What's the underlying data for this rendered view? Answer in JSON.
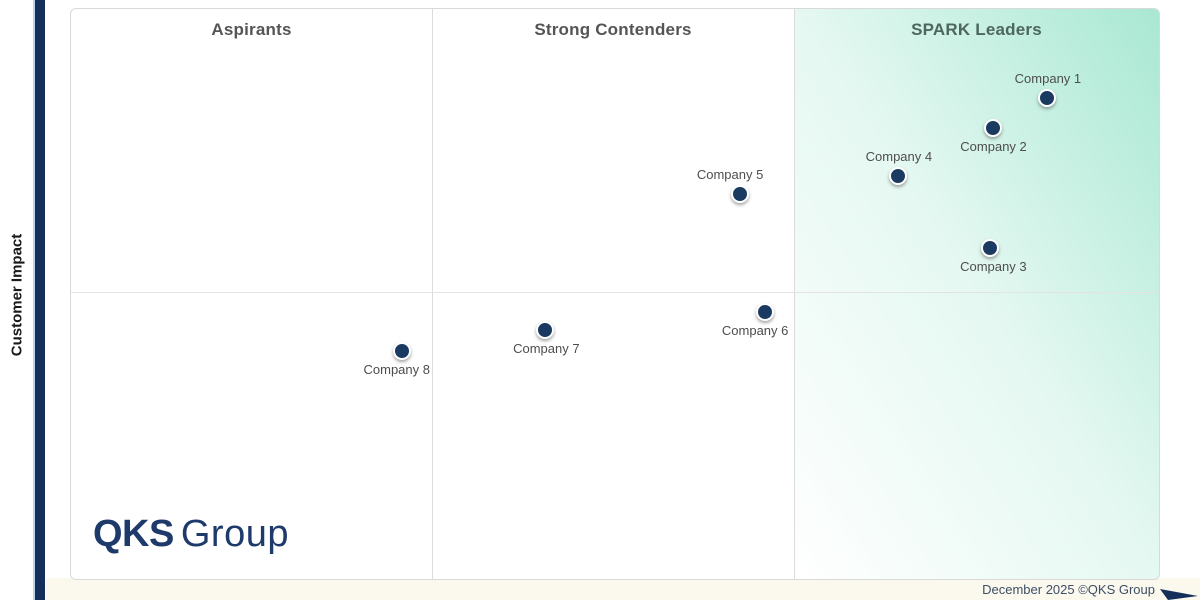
{
  "axes": {
    "y_label": "Customer Impact"
  },
  "footer": {
    "note": "December 2025 ©QKS Group"
  },
  "logo": {
    "bold": "QKS",
    "light": "Group"
  },
  "colors": {
    "navy_bar": "#14305a",
    "bar_edge": "#bcd4ea",
    "dot_fill": "#1b3a61",
    "dot_ring": "#ffffff",
    "label_gray": "#4d4d4d",
    "quadrant_title_gray": "#555555",
    "leaders_title": "#4d675f",
    "leaders_teal": "#a9e8d3",
    "grid": "#dcdcdc",
    "cream_strip": "#fbf8ee",
    "logo_navy": "#1e3a6b",
    "footer_text": "#3d4f66"
  },
  "chart_data": {
    "type": "scatter",
    "title": "",
    "xlabel": "",
    "ylabel": "Customer Impact",
    "legend": "none",
    "grid": "quadrant dividers only (no ticks, no axis labels on scale)",
    "x_range_pct": [
      0,
      100
    ],
    "y_range_pct": [
      0,
      100
    ],
    "quadrants": [
      {
        "label": "Aspirants"
      },
      {
        "label": "Strong Contenders"
      },
      {
        "label": "SPARK Leaders"
      }
    ],
    "points": [
      {
        "name": "Company 1",
        "x_pct": 89.7,
        "y_pct": 84.4,
        "quadrant": "SPARK Leaders",
        "label_position": "above",
        "label_dx": 1
      },
      {
        "name": "Company 2",
        "x_pct": 84.7,
        "y_pct": 79.1,
        "quadrant": "SPARK Leaders",
        "label_position": "below",
        "label_dx": 1
      },
      {
        "name": "Company 3",
        "x_pct": 84.5,
        "y_pct": 58.1,
        "quadrant": "SPARK Leaders",
        "label_position": "below",
        "label_dx": 3
      },
      {
        "name": "Company 4",
        "x_pct": 76.0,
        "y_pct": 70.7,
        "quadrant": "SPARK Leaders",
        "label_position": "above",
        "label_dx": 1
      },
      {
        "name": "Company 5",
        "x_pct": 61.5,
        "y_pct": 67.5,
        "quadrant": "Strong Contenders",
        "label_position": "above",
        "label_dx": -10
      },
      {
        "name": "Company 6",
        "x_pct": 63.8,
        "y_pct": 46.8,
        "quadrant": "Strong Contenders",
        "label_position": "below",
        "label_dx": -10
      },
      {
        "name": "Company 7",
        "x_pct": 43.6,
        "y_pct": 43.7,
        "quadrant": "Strong Contenders",
        "label_position": "below",
        "label_dx": 1
      },
      {
        "name": "Company 8",
        "x_pct": 30.4,
        "y_pct": 40.0,
        "quadrant": "Aspirants",
        "label_position": "below",
        "label_dx": -5
      }
    ]
  }
}
